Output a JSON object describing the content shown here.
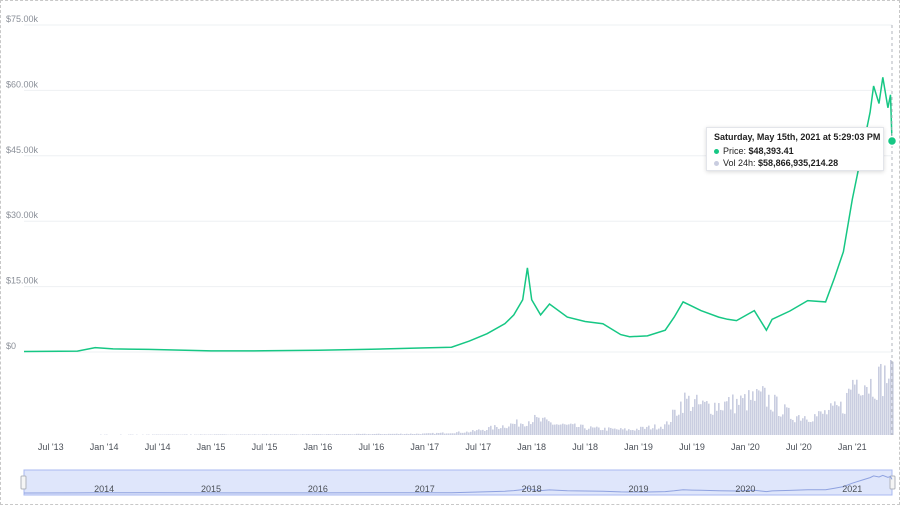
{
  "chart_data": {
    "type": "line",
    "title": "",
    "xlabel": "",
    "ylabel": "",
    "x_range": [
      "2013-04",
      "2021-05-15"
    ],
    "ylim": [
      0,
      75000
    ],
    "y_ticks": [
      "$0",
      "$15.00k",
      "$30.00k",
      "$45.00k",
      "$60.00k",
      "$75.00k"
    ],
    "y_tick_values": [
      0,
      15000,
      30000,
      45000,
      60000,
      75000
    ],
    "x_ticks": [
      {
        "date": "2013-07",
        "label": "Jul '13"
      },
      {
        "date": "2014-01",
        "label": "Jan '14"
      },
      {
        "date": "2014-07",
        "label": "Jul '14"
      },
      {
        "date": "2015-01",
        "label": "Jan '15"
      },
      {
        "date": "2015-07",
        "label": "Jul '15"
      },
      {
        "date": "2016-01",
        "label": "Jan '16"
      },
      {
        "date": "2016-07",
        "label": "Jul '16"
      },
      {
        "date": "2017-01",
        "label": "Jan '17"
      },
      {
        "date": "2017-07",
        "label": "Jul '17"
      },
      {
        "date": "2018-01",
        "label": "Jan '18"
      },
      {
        "date": "2018-07",
        "label": "Jul '18"
      },
      {
        "date": "2019-01",
        "label": "Jan '19"
      },
      {
        "date": "2019-07",
        "label": "Jul '19"
      },
      {
        "date": "2020-01",
        "label": "Jan '20"
      },
      {
        "date": "2020-07",
        "label": "Jul '20"
      },
      {
        "date": "2021-01",
        "label": "Jan '21"
      }
    ],
    "grid": true,
    "colors": {
      "price": "#16c784",
      "volume": "#c9cde0",
      "navigator": "#dfe6fb",
      "navigator_border": "#a8b8f0"
    },
    "series": [
      {
        "name": "Price",
        "x": [
          "2013-04",
          "2013-10",
          "2013-12",
          "2014-02",
          "2014-06",
          "2015-01",
          "2015-07",
          "2016-01",
          "2016-07",
          "2017-01",
          "2017-04",
          "2017-06",
          "2017-08",
          "2017-10",
          "2017-11",
          "2017-12-01",
          "2017-12-17",
          "2018-01",
          "2018-02",
          "2018-03",
          "2018-05",
          "2018-07",
          "2018-09",
          "2018-11",
          "2018-12",
          "2019-02",
          "2019-04",
          "2019-05",
          "2019-06",
          "2019-07",
          "2019-08",
          "2019-10",
          "2019-11",
          "2019-12",
          "2020-02",
          "2020-03-12",
          "2020-04",
          "2020-06",
          "2020-08",
          "2020-10",
          "2020-11",
          "2020-12",
          "2021-01",
          "2021-02",
          "2021-03",
          "2021-03-13",
          "2021-04",
          "2021-04-14",
          "2021-05-01",
          "2021-05-10",
          "2021-05-15"
        ],
        "y": [
          120,
          200,
          1000,
          700,
          600,
          250,
          280,
          400,
          650,
          950,
          1100,
          2500,
          4200,
          6500,
          8500,
          12000,
          19300,
          12000,
          8500,
          11000,
          8000,
          7000,
          6500,
          4000,
          3500,
          3700,
          5000,
          8000,
          11500,
          10500,
          9500,
          8000,
          7500,
          7200,
          9500,
          5000,
          7500,
          9400,
          11800,
          11500,
          17000,
          23000,
          35000,
          45000,
          55000,
          61000,
          57000,
          63000,
          56000,
          59000,
          48393.41
        ]
      },
      {
        "name": "Vol 24h",
        "x": [
          "2013-04",
          "2016-01",
          "2017-01",
          "2017-06",
          "2017-12",
          "2018-01",
          "2018-04",
          "2018-08",
          "2018-12",
          "2019-04",
          "2019-06",
          "2019-08",
          "2019-12",
          "2020-03",
          "2020-06",
          "2020-09",
          "2020-12",
          "2021-01",
          "2021-02",
          "2021-03",
          "2021-05"
        ],
        "y": [
          0.002,
          0.01,
          0.02,
          0.05,
          0.2,
          0.25,
          0.16,
          0.1,
          0.08,
          0.15,
          0.55,
          0.45,
          0.5,
          0.6,
          0.3,
          0.3,
          0.45,
          0.85,
          0.9,
          0.8,
          0.95
        ]
      }
    ],
    "tooltip": {
      "title": "Saturday, May 15th, 2021 at 5:29:03 PM",
      "price_label": "Price:",
      "price_value": "$48,393.41",
      "vol_label": "Vol 24h:",
      "vol_value": "$58,866,935,214.28"
    },
    "navigator": {
      "x_ticks": [
        {
          "date": "2014-01",
          "label": "2014"
        },
        {
          "date": "2015-01",
          "label": "2015"
        },
        {
          "date": "2016-01",
          "label": "2016"
        },
        {
          "date": "2017-01",
          "label": "2017"
        },
        {
          "date": "2018-01",
          "label": "2018"
        },
        {
          "date": "2019-01",
          "label": "2019"
        },
        {
          "date": "2020-01",
          "label": "2020"
        },
        {
          "date": "2021-01",
          "label": "2021"
        }
      ]
    }
  }
}
